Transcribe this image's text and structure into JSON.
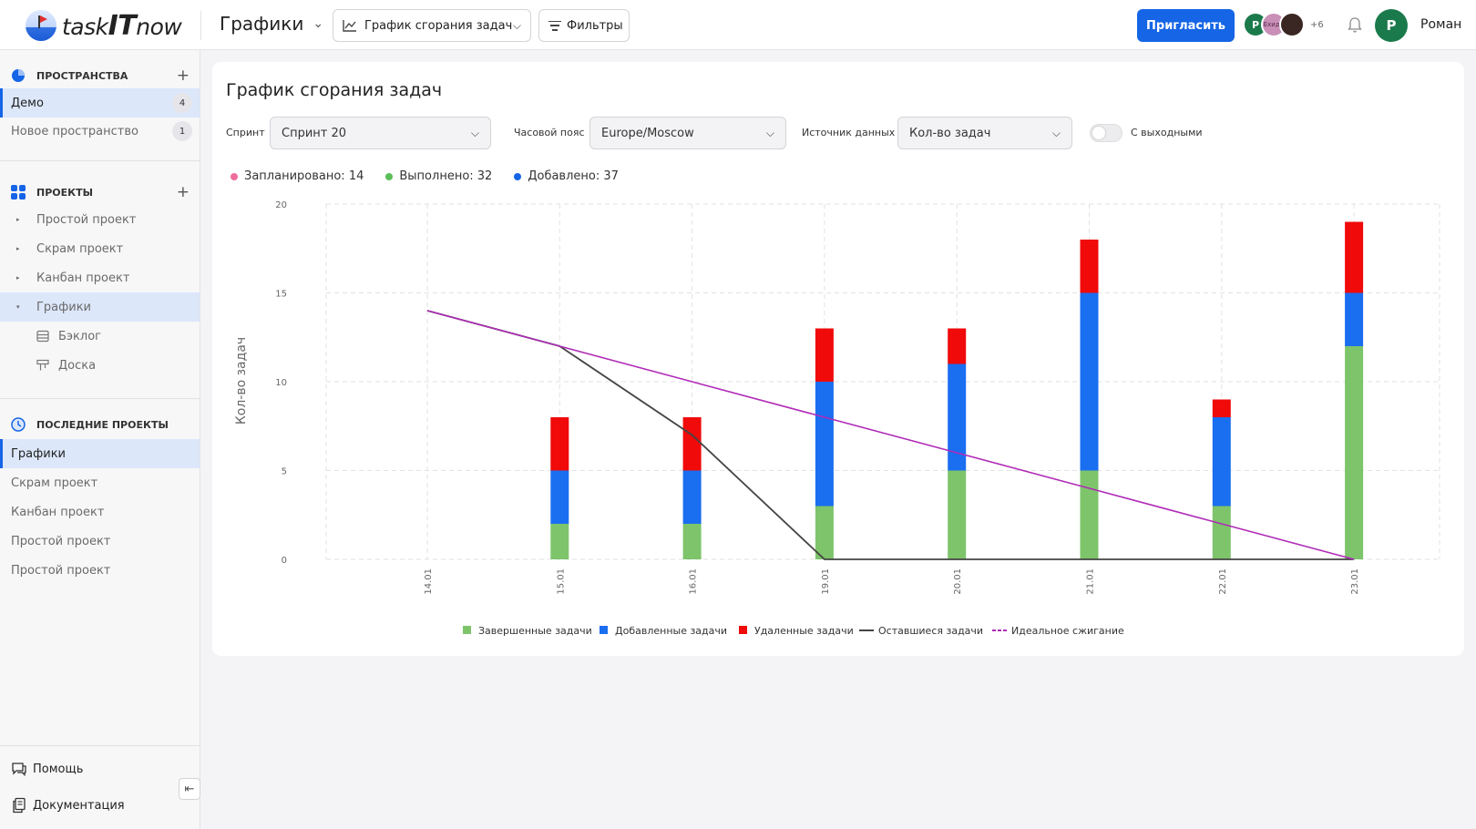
{
  "app": {
    "logo_prefix": "task",
    "logo_bold": "IT",
    "logo_suffix": "now"
  },
  "topbar": {
    "page_title": "Графики",
    "view_selector": "График сгорания задач",
    "filters_label": "Фильтры",
    "invite_label": "Пригласить",
    "avatars": [
      "Р",
      "Ехидн",
      ""
    ],
    "more_count": "+6",
    "user_initial": "Р",
    "user_name": "Роман"
  },
  "sidebar": {
    "spaces_header": "ПРОСТРАНСТВА",
    "spaces": [
      {
        "label": "Демо",
        "count": "4"
      },
      {
        "label": "Новое пространство",
        "count": "1"
      }
    ],
    "projects_header": "ПРОЕКТЫ",
    "projects": [
      {
        "label": "Простой проект"
      },
      {
        "label": "Скрам проект"
      },
      {
        "label": "Канбан проект"
      },
      {
        "label": "Графики"
      }
    ],
    "project_children": [
      {
        "label": "Бэклог"
      },
      {
        "label": "Доска"
      }
    ],
    "recent_header": "ПОСЛЕДНИЕ ПРОЕКТЫ",
    "recent": [
      {
        "label": "Графики"
      },
      {
        "label": "Скрам проект"
      },
      {
        "label": "Канбан проект"
      },
      {
        "label": "Простой проект"
      },
      {
        "label": "Простой проект"
      }
    ],
    "help_label": "Помощь",
    "docs_label": "Документация"
  },
  "main": {
    "title": "График сгорания задач",
    "sprint_label": "Спринт",
    "sprint_value": "Спринт 20",
    "tz_label": "Часовой пояс",
    "tz_value": "Europe/Moscow",
    "source_label": "Источник данных",
    "source_value": "Кол-во задач",
    "weekends_label": "С выходными",
    "stats": {
      "planned": "Запланировано: 14",
      "done": "Выполнено: 32",
      "added": "Добавлено: 37"
    }
  },
  "colors": {
    "accent": "#1565e6",
    "completed": "#7dc46b",
    "added": "#1a6ef0",
    "removed": "#f00a0a",
    "remaining": "#444444",
    "ideal": "#b02bb8",
    "planned_dot": "#ee6c9c"
  },
  "chart_data": {
    "type": "bar",
    "stacked": true,
    "categories": [
      "14.01",
      "15.01",
      "16.01",
      "19.01",
      "20.01",
      "21.01",
      "22.01",
      "23.01"
    ],
    "series": [
      {
        "name": "Завершенные задачи",
        "type": "bar",
        "values": [
          0,
          2,
          2,
          3,
          5,
          5,
          3,
          12
        ]
      },
      {
        "name": "Добавленные задачи",
        "type": "bar",
        "values": [
          0,
          3,
          3,
          7,
          6,
          10,
          5,
          3
        ]
      },
      {
        "name": "Удаленные задачи",
        "type": "bar",
        "values": [
          0,
          3,
          3,
          3,
          2,
          3,
          1,
          4
        ]
      },
      {
        "name": "Оставшиеся задачи",
        "type": "line",
        "values": [
          14,
          12,
          7,
          0,
          0,
          0,
          0,
          0
        ]
      },
      {
        "name": "Идеальное сжигание",
        "type": "line",
        "values": [
          14,
          12,
          10,
          8,
          6,
          4,
          2,
          0
        ]
      }
    ],
    "ylabel": "Кол-во задач",
    "ylim": [
      0,
      20
    ],
    "yticks": [
      0,
      5,
      10,
      15,
      20
    ],
    "grid": true,
    "legend_position": "bottom"
  }
}
